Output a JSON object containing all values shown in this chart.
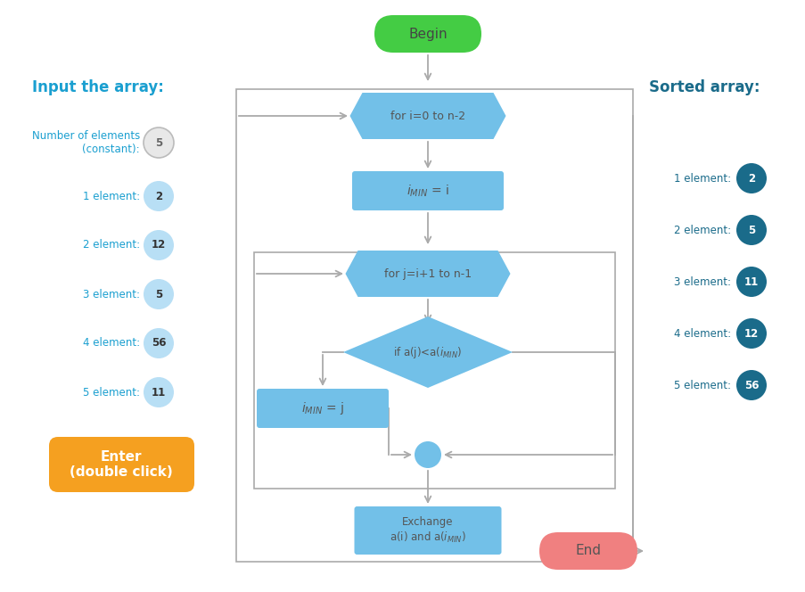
{
  "bg_color": "#ffffff",
  "title_left": "Input the array:",
  "title_right": "Sorted array:",
  "left_labels": [
    "Number of elements\n(constant):",
    "1 element:",
    "2 element:",
    "3 element:",
    "4 element:",
    "5 element:"
  ],
  "left_values": [
    "5",
    "2",
    "12",
    "5",
    "56",
    "11"
  ],
  "right_labels": [
    "1 element:",
    "2 element:",
    "3 element:",
    "4 element:",
    "5 element:"
  ],
  "right_values": [
    "2",
    "5",
    "11",
    "12",
    "56"
  ],
  "left_circle_color_0": "#e8e8e8",
  "left_circle_color_rest": "#b8dff5",
  "right_circle_color": "#1a6b8a",
  "begin_color": "#44cc44",
  "end_color": "#f08080",
  "flow_color": "#72c0e8",
  "arrow_color": "#aaaaaa",
  "enter_bg": "#f5a020",
  "text_dark": "#555555",
  "text_left_color": "#1a9fd0",
  "text_right_color": "#1a6b8a"
}
